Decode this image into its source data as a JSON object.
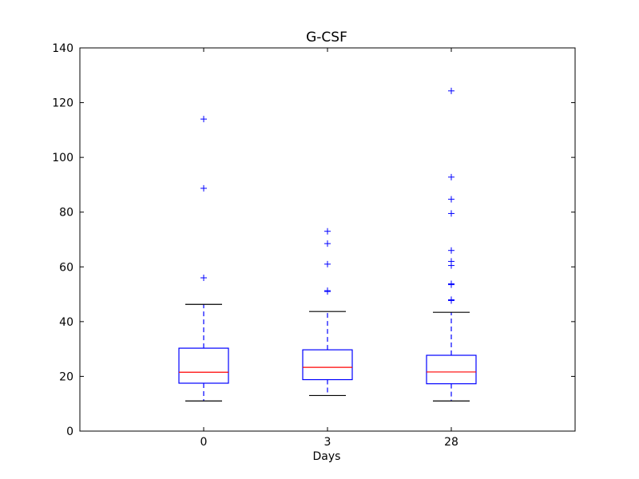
{
  "chart_data": {
    "type": "box",
    "title": "G-CSF",
    "xlabel": "Days",
    "ylabel": "",
    "ylim": [
      0,
      140
    ],
    "yticks": [
      "0",
      "20",
      "40",
      "60",
      "80",
      "100",
      "120",
      "140"
    ],
    "categories": [
      "0",
      "3",
      "28"
    ],
    "grid": false,
    "colors": {
      "box": "#0000ff",
      "median": "#ff0000",
      "cap": "#000000",
      "outlier": "#0000ff"
    },
    "boxes": [
      {
        "category": "0",
        "whisker_low": 11,
        "q1": 17.5,
        "median": 21.5,
        "q3": 30.3,
        "whisker_high": 46.3,
        "outliers": [
          56,
          88.7,
          114
        ]
      },
      {
        "category": "3",
        "whisker_low": 13,
        "q1": 18.8,
        "median": 23.3,
        "q3": 29.7,
        "whisker_high": 43.7,
        "outliers": [
          51,
          51.3,
          61,
          68.5,
          73
        ]
      },
      {
        "category": "28",
        "whisker_low": 11,
        "q1": 17.3,
        "median": 21.6,
        "q3": 27.7,
        "whisker_high": 43.4,
        "outliers": [
          47.7,
          48,
          53.5,
          53.8,
          60.5,
          62,
          66,
          79.5,
          84.7,
          92.8,
          124.3
        ]
      }
    ]
  }
}
